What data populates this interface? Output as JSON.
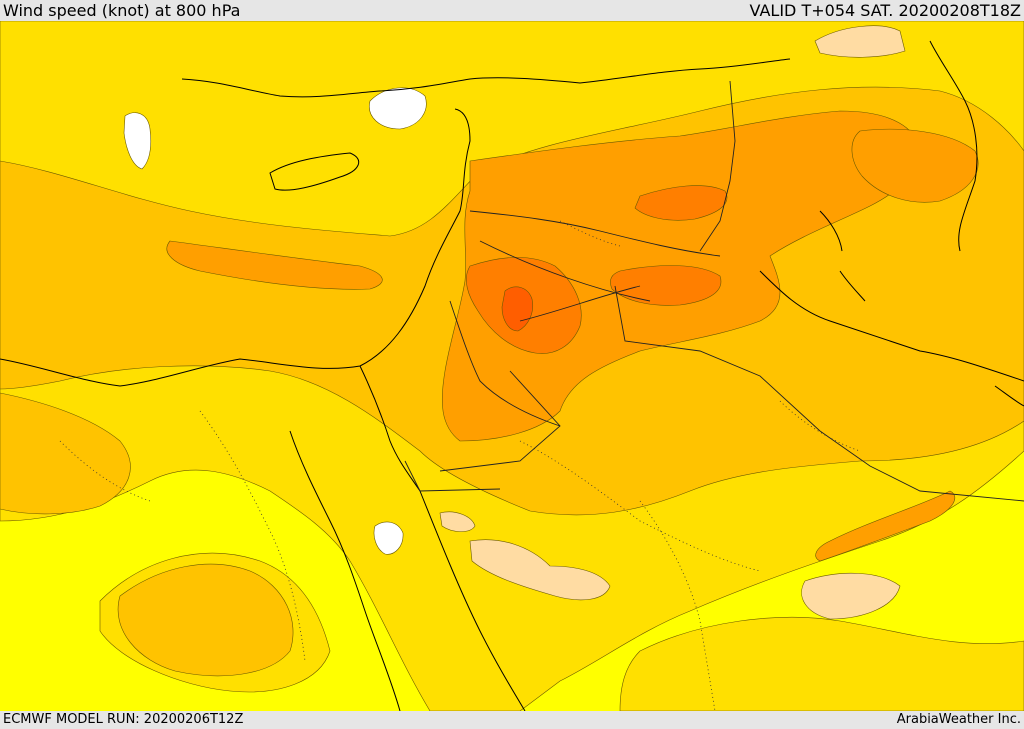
{
  "header": {
    "title": "Wind speed (knot) at 800 hPa",
    "valid": "VALID T+054 SAT. 20200208T18Z"
  },
  "footer": {
    "model_run": "ECMWF MODEL RUN: 20200206T12Z",
    "credit": "ArabiaWeather Inc."
  },
  "colors": {
    "band_lightest": "#ffff00",
    "band_light": "#ffe000",
    "band_mid": "#ffc300",
    "band_strong": "#ff9f00",
    "band_stronger": "#ff7f00",
    "band_strongest": "#ff5e00",
    "calm": "#ffdca3",
    "very_calm": "#ffffff",
    "border_line": "#000000"
  }
}
